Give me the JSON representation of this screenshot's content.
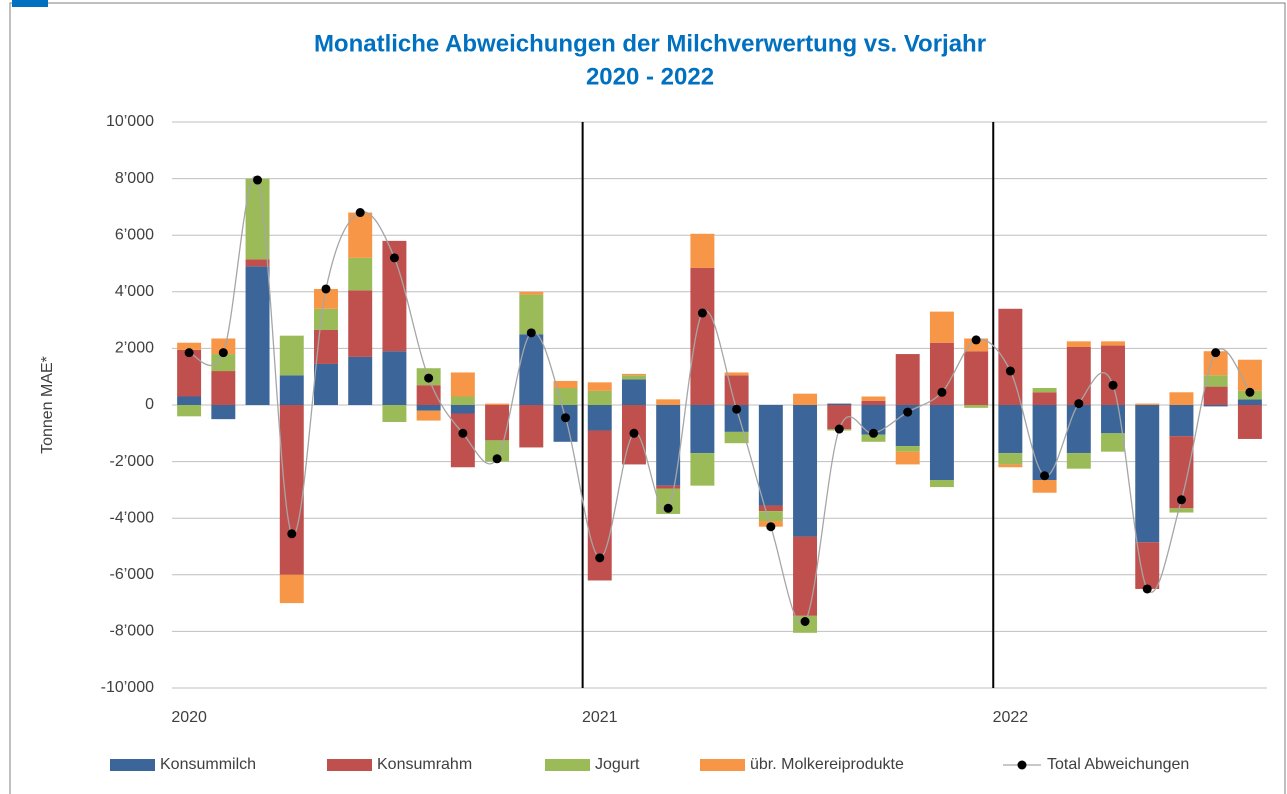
{
  "chart_data": {
    "type": "bar",
    "stacked": true,
    "title": "Monatliche Abweichungen der Milchverwertung vs. Vorjahr",
    "subtitle": "2020 - 2022",
    "y_label": "Tonnen MAE*",
    "categories": [
      "2020",
      null,
      null,
      null,
      null,
      null,
      null,
      null,
      null,
      null,
      null,
      null,
      "2021",
      null,
      null,
      null,
      null,
      null,
      null,
      null,
      null,
      null,
      null,
      null,
      "2022",
      null,
      null,
      null,
      null,
      null,
      null,
      null
    ],
    "ylim": [
      -10000,
      10000
    ],
    "yticks": [
      {
        "value": -10000,
        "label": "-10’000"
      },
      {
        "value": -8000,
        "label": "-8’000"
      },
      {
        "value": -6000,
        "label": "-6’000"
      },
      {
        "value": -4000,
        "label": "-4’000"
      },
      {
        "value": -2000,
        "label": "-2’000"
      },
      0,
      {
        "value": 2000,
        "label": "2’000"
      },
      {
        "value": 4000,
        "label": "4’000"
      },
      {
        "value": 6000,
        "label": "6’000"
      },
      {
        "value": 8000,
        "label": "8’000"
      },
      {
        "value": 10000,
        "label": "10’000"
      }
    ],
    "grid": true,
    "legend": "bottom",
    "series": [
      {
        "name": "Konsummilch",
        "color": "#3c6599",
        "values": [
          300,
          -500,
          4900,
          1050,
          1450,
          1700,
          1900,
          -200,
          -300,
          0,
          2500,
          -1300,
          -900,
          900,
          -2850,
          -1700,
          -950,
          -3550,
          -4650,
          50,
          -1050,
          -1450,
          -2650,
          0,
          -1700,
          -2650,
          -1700,
          -1000,
          -4850,
          -1100,
          -50,
          200
        ]
      },
      {
        "name": "Konsumrahm",
        "color": "#c0504d",
        "values": [
          1650,
          1200,
          250,
          -6000,
          1200,
          2350,
          3900,
          700,
          -1900,
          -1250,
          -1500,
          0,
          -5300,
          -2100,
          -100,
          4850,
          1050,
          -200,
          -2800,
          -850,
          150,
          1800,
          2200,
          1900,
          3400,
          450,
          2050,
          2100,
          -1650,
          -2550,
          650,
          -1200
        ]
      },
      {
        "name": "Jogurt",
        "color": "#9bbb59",
        "values": [
          -400,
          600,
          2850,
          1400,
          750,
          1150,
          -600,
          600,
          300,
          -750,
          1400,
          600,
          500,
          150,
          -900,
          -1150,
          -400,
          -350,
          -600,
          -50,
          -250,
          -200,
          -250,
          -100,
          -400,
          150,
          -550,
          -650,
          0,
          -150,
          400,
          300
        ]
      },
      {
        "name": "übr. Molkereiprodukte",
        "color": "#f79646",
        "values": [
          250,
          550,
          0,
          -1000,
          700,
          1600,
          0,
          -350,
          850,
          50,
          100,
          250,
          300,
          50,
          200,
          1200,
          100,
          -200,
          400,
          0,
          150,
          -450,
          1100,
          450,
          -100,
          -450,
          200,
          150,
          50,
          450,
          850,
          1100
        ]
      },
      {
        "name": "Total Abweichungen",
        "type": "line",
        "smooth": true,
        "color": "#a6a6a6",
        "marker_color": "#000000",
        "values": [
          1850,
          1850,
          7950,
          -4550,
          4100,
          6800,
          5200,
          950,
          -1000,
          -1900,
          2550,
          -450,
          -5400,
          -1000,
          -3650,
          3250,
          -150,
          -4300,
          -7650,
          -850,
          -1000,
          -250,
          450,
          2300,
          1200,
          -2500,
          50,
          700,
          -6500,
          -3350,
          1850,
          450
        ]
      }
    ]
  }
}
